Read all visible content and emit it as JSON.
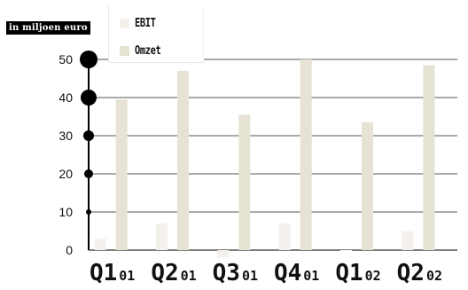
{
  "chart_data": {
    "type": "bar",
    "unit_label": "in miljoen euro",
    "categories": [
      "Q1 01",
      "Q2 01",
      "Q3 01",
      "Q4 01",
      "Q1 02",
      "Q2 02"
    ],
    "category_labels": [
      {
        "main": "Q1",
        "sub": "01"
      },
      {
        "main": "Q2",
        "sub": "01"
      },
      {
        "main": "Q3",
        "sub": "01"
      },
      {
        "main": "Q4",
        "sub": "01"
      },
      {
        "main": "Q1",
        "sub": "02"
      },
      {
        "main": "Q2",
        "sub": "02"
      }
    ],
    "series": [
      {
        "name": "EBIT",
        "values": [
          3,
          7,
          -2,
          7,
          0,
          5
        ],
        "color": "#f4f1ec"
      },
      {
        "name": "Omzet",
        "values": [
          39.5,
          47,
          35.5,
          50,
          33.5,
          48.5
        ],
        "color": "#e6e3d4"
      }
    ],
    "yticks": [
      0,
      10,
      20,
      30,
      40,
      50
    ],
    "ylim": [
      -2,
      52
    ],
    "grid": true,
    "legend_position": "top-left",
    "axis_color": "#000000",
    "grid_color": "#555555"
  }
}
